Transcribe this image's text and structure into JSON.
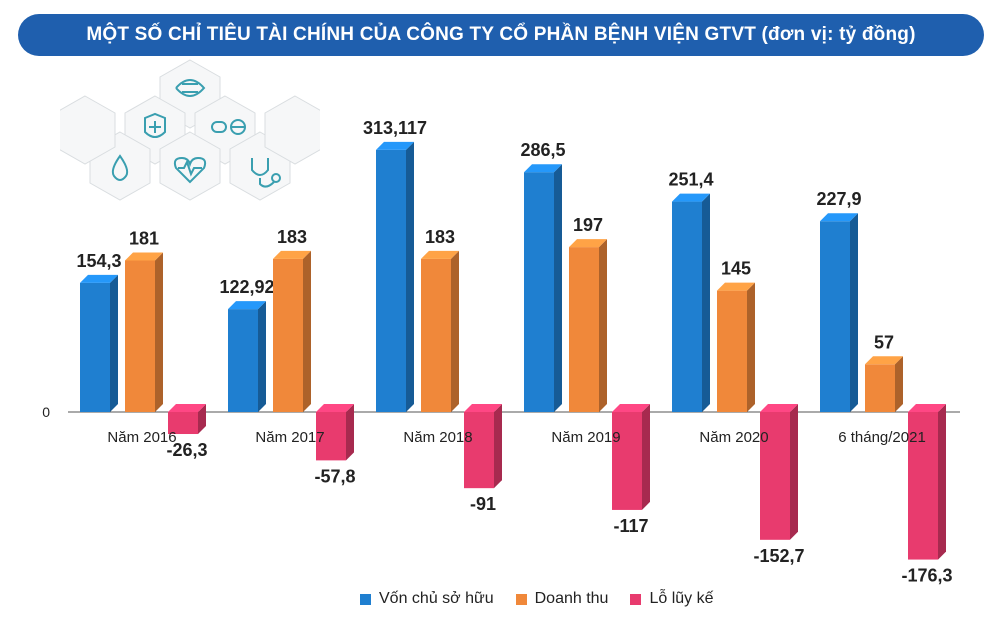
{
  "title": "MỘT SỐ CHỈ TIÊU TÀI CHÍNH CỦA CÔNG TY CỔ PHẦN BỆNH VIỆN GTVT (đơn vị: tỷ đồng)",
  "colors": {
    "banner": "#1f5fae",
    "von": "#1f7fd0",
    "doanhthu": "#f0883a",
    "lo": "#e83b6e"
  },
  "chart_data": {
    "type": "bar",
    "title": "MỘT SỐ CHỈ TIÊU TÀI CHÍNH CỦA CÔNG TY CỔ PHẦN BỆNH VIỆN GTVT (đơn vị: tỷ đồng)",
    "categories": [
      "Năm 2016",
      "Năm 2017",
      "Năm 2018",
      "Năm 2019",
      "Năm 2020",
      "6 tháng/2021"
    ],
    "series": [
      {
        "name": "Vốn chủ sở hữu",
        "values": [
          154.3,
          122.92,
          313.117,
          286.5,
          251.4,
          227.9
        ],
        "labels": [
          "154,3",
          "122,92",
          "313,117",
          "286,5",
          "251,4",
          "227,9"
        ]
      },
      {
        "name": "Doanh thu",
        "values": [
          181,
          183,
          183,
          197,
          145,
          57
        ],
        "labels": [
          "181",
          "183",
          "183",
          "197",
          "145",
          "57"
        ]
      },
      {
        "name": "Lỗ lũy kế",
        "values": [
          -26.3,
          -57.8,
          -91,
          -117,
          -152.7,
          -176.3
        ],
        "labels": [
          "-26,3",
          "-57,8",
          "-91",
          "-117",
          "-152,7",
          "-176,3"
        ]
      }
    ],
    "y_zero_label": "0",
    "legend_position": "bottom",
    "grid": false
  },
  "decor_icons": [
    "dna-icon",
    "shield-cross-icon",
    "pill-icon",
    "drop-icon",
    "heartbeat-icon",
    "stethoscope-icon"
  ]
}
